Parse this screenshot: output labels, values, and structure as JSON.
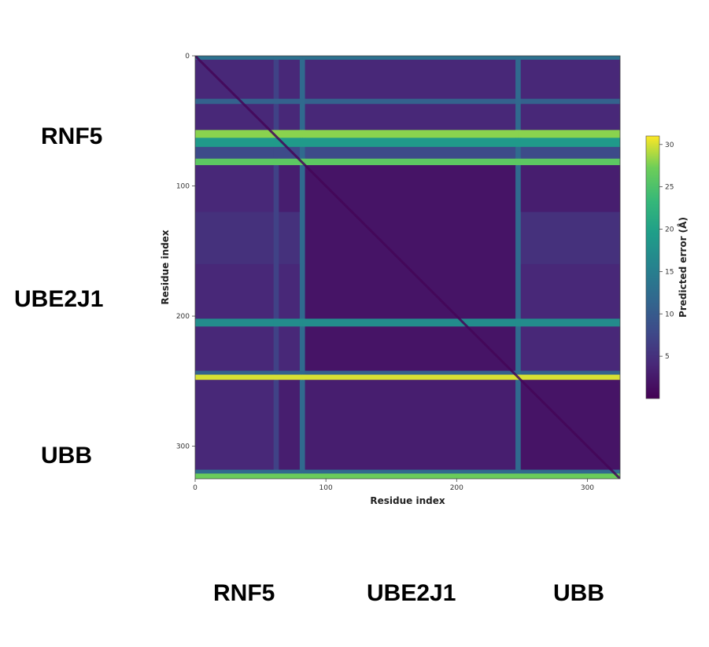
{
  "chart_data": {
    "type": "heatmap",
    "title": "",
    "xlabel": "Residue index",
    "ylabel": "Residue index",
    "xlim": [
      0,
      325
    ],
    "ylim": [
      0,
      325
    ],
    "x_ticks": [
      "0",
      "100",
      "200",
      "300"
    ],
    "y_ticks": [
      "0",
      "100",
      "200",
      "300"
    ],
    "colorbar": {
      "label": "Predicted error (Å)",
      "range": [
        0,
        31
      ],
      "ticks": [
        "5",
        "10",
        "15",
        "20",
        "25",
        "30"
      ],
      "colormap": "viridis"
    },
    "domains": [
      {
        "name": "RNF5",
        "start": 0,
        "end": 82
      },
      {
        "name": "UBE2J1",
        "start": 82,
        "end": 247
      },
      {
        "name": "UBB",
        "start": 247,
        "end": 325
      }
    ],
    "row_error_profile": [
      {
        "start": 0,
        "end": 3,
        "value": 13
      },
      {
        "start": 3,
        "end": 33,
        "value": 4
      },
      {
        "start": 33,
        "end": 37,
        "value": 11
      },
      {
        "start": 37,
        "end": 57,
        "value": 4
      },
      {
        "start": 57,
        "end": 63,
        "value": 28
      },
      {
        "start": 63,
        "end": 70,
        "value": 19
      },
      {
        "start": 70,
        "end": 79,
        "value": 8
      },
      {
        "start": 79,
        "end": 84,
        "value": 26
      },
      {
        "start": 84,
        "end": 120,
        "value": 3
      },
      {
        "start": 120,
        "end": 160,
        "value": 5
      },
      {
        "start": 160,
        "end": 202,
        "value": 4
      },
      {
        "start": 202,
        "end": 208,
        "value": 17
      },
      {
        "start": 208,
        "end": 242,
        "value": 4
      },
      {
        "start": 242,
        "end": 245,
        "value": 11
      },
      {
        "start": 245,
        "end": 249,
        "value": 30
      },
      {
        "start": 249,
        "end": 318,
        "value": 3
      },
      {
        "start": 318,
        "end": 321,
        "value": 12
      },
      {
        "start": 321,
        "end": 325,
        "value": 27
      }
    ],
    "column_error_profile": [
      {
        "start": 0,
        "end": 60,
        "value": 4
      },
      {
        "start": 60,
        "end": 64,
        "value": 7
      },
      {
        "start": 64,
        "end": 80,
        "value": 3
      },
      {
        "start": 80,
        "end": 84,
        "value": 12
      },
      {
        "start": 84,
        "end": 245,
        "value": 3
      },
      {
        "start": 245,
        "end": 249,
        "value": 12
      },
      {
        "start": 249,
        "end": 325,
        "value": 3
      }
    ],
    "diagonal_error": 0.5,
    "intra_domain_error": 2
  },
  "labels": {
    "left": [
      "RNF5",
      "UBE2J1",
      "UBB"
    ],
    "bottom": [
      "RNF5",
      "UBE2J1",
      "UBB"
    ]
  }
}
